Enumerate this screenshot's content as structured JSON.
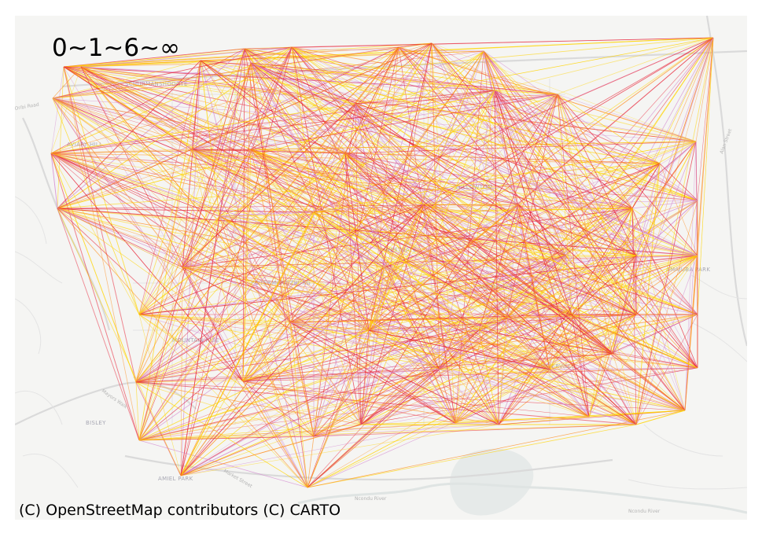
{
  "legend": {
    "title": "0~1~6~∞"
  },
  "attribution": "(C) OpenStreetMap contributors (C) CARTO",
  "colors": {
    "background": "#f5f5f3",
    "road": "#d9d9d9",
    "water": "#e3e7e6",
    "edge_low": "#ffd400",
    "edge_mid": "#ff8c1a",
    "edge_high": "#e8283c",
    "edge_faint": "#d48ad0"
  },
  "map_labels": {
    "place": [
      "SCHURMANSHOOGTE",
      "AVIARY HILL",
      "PIETERMARITZBURG",
      "MOUNTAIN RISE",
      "ALLANDALE",
      "WESTGATE",
      "AMAJUBA PARK",
      "NAPIERVILLE",
      "WILLOWTON",
      "AMIEL PARK",
      "BISLEY"
    ],
    "road": [
      "Ncondu River",
      "Ncondu River",
      "Alan Street",
      "Oribi Road",
      "Mayors Walk",
      "Market Street"
    ]
  }
}
